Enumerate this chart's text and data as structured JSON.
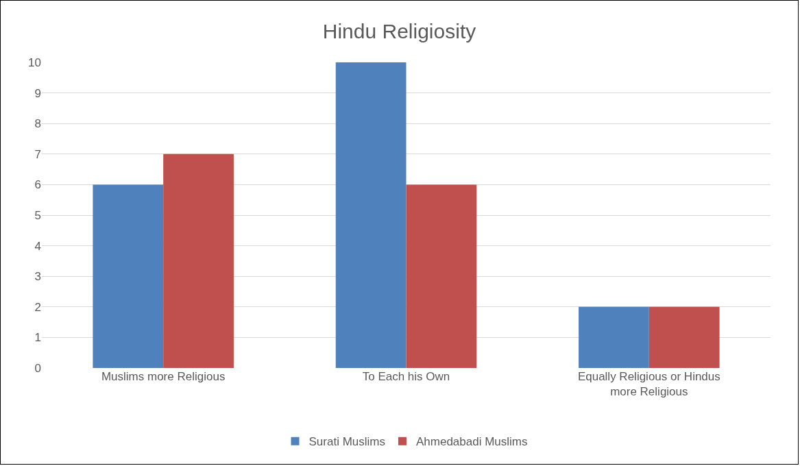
{
  "chart_data": {
    "type": "bar",
    "title": "Hindu Religiosity",
    "categories": [
      "Muslims more Religious",
      "To Each his Own",
      "Equally Religious or Hindus more Religious"
    ],
    "series": [
      {
        "name": "Surati Muslims",
        "color": "#4f81bd",
        "values": [
          6,
          10,
          2
        ]
      },
      {
        "name": "Ahmedabadi Muslims",
        "color": "#c0504d",
        "values": [
          7,
          6,
          2
        ]
      }
    ],
    "ylim": [
      0,
      10
    ],
    "yticks": [
      0,
      1,
      2,
      3,
      4,
      5,
      6,
      7,
      8,
      9,
      10
    ],
    "grid": "y",
    "legend": "bottom"
  }
}
